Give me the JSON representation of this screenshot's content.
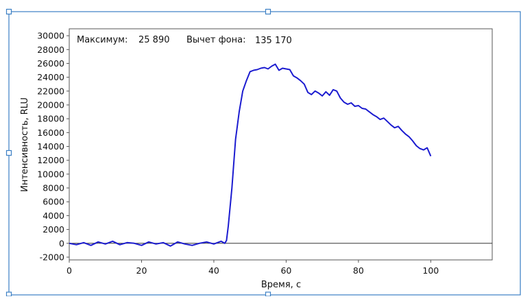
{
  "chart_data": {
    "type": "line",
    "title": "",
    "xlabel": "Время, с",
    "ylabel": "Интенсивность, RLU",
    "xlim": [
      0,
      117
    ],
    "ylim": [
      -2400,
      31000
    ],
    "x_ticks": [
      "0",
      "20",
      "40",
      "60",
      "80",
      "100"
    ],
    "x_tick_values": [
      0,
      20,
      40,
      60,
      80,
      100
    ],
    "y_ticks": [
      "30000",
      "28000",
      "26000",
      "24000",
      "22000",
      "20000",
      "18000",
      "16000",
      "14000",
      "12000",
      "10000",
      "8000",
      "6000",
      "4000",
      "2000",
      "0",
      "-2000"
    ],
    "y_tick_values": [
      30000,
      28000,
      26000,
      24000,
      22000,
      20000,
      18000,
      16000,
      14000,
      12000,
      10000,
      8000,
      6000,
      4000,
      2000,
      0,
      -2000
    ],
    "annotations": {
      "max_label": "Максимум:",
      "max_value": "25 890",
      "bg_label": "Вычет фона:",
      "bg_value": "135 170"
    },
    "grid": false,
    "baseline_at_zero": true,
    "series": [
      {
        "color": "#1b1bd0",
        "x": [
          0,
          2,
          4,
          6,
          8,
          10,
          12,
          14,
          16,
          18,
          20,
          22,
          24,
          26,
          28,
          30,
          32,
          34,
          36,
          38,
          40,
          42,
          43,
          43.5,
          44,
          45,
          46,
          47,
          48,
          49,
          50,
          51,
          52,
          53,
          54,
          55,
          56,
          57,
          58,
          59,
          60,
          61,
          62,
          63,
          64,
          65,
          66,
          67,
          68,
          69,
          70,
          71,
          72,
          73,
          74,
          75,
          76,
          77,
          78,
          79,
          80,
          81,
          82,
          83,
          84,
          85,
          86,
          87,
          88,
          89,
          90,
          91,
          92,
          93,
          94,
          95,
          96,
          97,
          98,
          99,
          100
        ],
        "y": [
          0,
          -200,
          100,
          -300,
          200,
          -100,
          300,
          -200,
          100,
          0,
          -300,
          200,
          -100,
          100,
          -400,
          200,
          -100,
          -300,
          0,
          200,
          -100,
          300,
          0,
          400,
          2500,
          8000,
          15000,
          19000,
          22000,
          23500,
          24800,
          25000,
          25100,
          25300,
          25400,
          25200,
          25600,
          25890,
          25000,
          25300,
          25200,
          25100,
          24200,
          23900,
          23500,
          23000,
          21800,
          21500,
          22000,
          21700,
          21300,
          21900,
          21400,
          22200,
          22000,
          21000,
          20400,
          20100,
          20300,
          19800,
          19900,
          19500,
          19400,
          19000,
          18600,
          18300,
          17900,
          18100,
          17600,
          17100,
          16700,
          16900,
          16300,
          15800,
          15400,
          14800,
          14100,
          13700,
          13500,
          13800,
          12600
        ],
        "noise_amplitude": 0
      }
    ]
  }
}
